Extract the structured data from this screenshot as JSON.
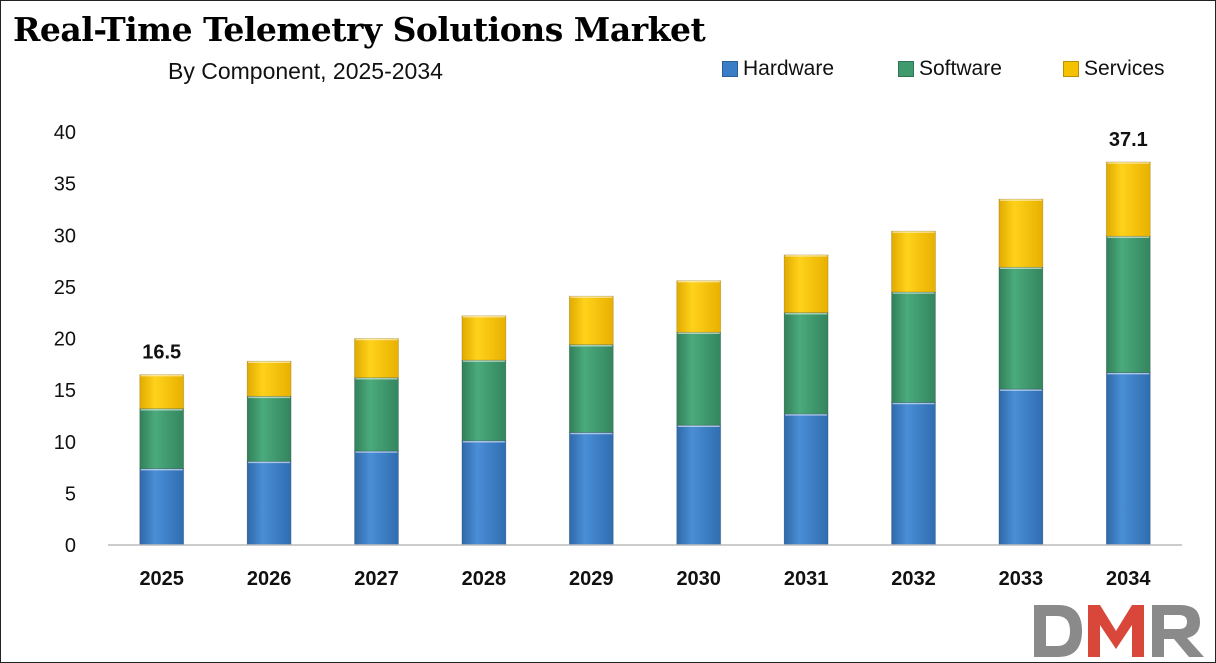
{
  "title": "Real-Time Telemetry Solutions Market",
  "subtitle": "By Component, 2025-2034",
  "logo_text": "DMR",
  "colors": {
    "hardware": "#3a7ec8",
    "software": "#3f9a6e",
    "services": "#f6c200",
    "logo_grey": "#8a8a8a",
    "logo_red": "#d9463a"
  },
  "chart_data": {
    "type": "bar",
    "stacked": true,
    "categories": [
      "2025",
      "2026",
      "2027",
      "2028",
      "2029",
      "2030",
      "2031",
      "2032",
      "2033",
      "2034"
    ],
    "series": [
      {
        "name": "Hardware",
        "color": "#3a7ec8",
        "values": [
          7.4,
          8.1,
          9.1,
          10.1,
          10.9,
          11.6,
          12.7,
          13.8,
          15.1,
          16.7
        ]
      },
      {
        "name": "Software",
        "color": "#3f9a6e",
        "values": [
          5.8,
          6.3,
          7.1,
          7.8,
          8.5,
          9.0,
          9.8,
          10.7,
          11.8,
          13.2
        ]
      },
      {
        "name": "Services",
        "color": "#f6c200",
        "values": [
          3.3,
          3.4,
          3.8,
          4.3,
          4.7,
          5.0,
          5.6,
          5.9,
          6.6,
          7.2
        ]
      }
    ],
    "yticks": [
      "0",
      "5",
      "10",
      "15",
      "20",
      "25",
      "30",
      "35",
      "40"
    ],
    "ylim": [
      0,
      40
    ],
    "grid": false,
    "legend_position": "top-right",
    "total_labels": [
      {
        "category": "2025",
        "text": "16.5"
      },
      {
        "category": "2034",
        "text": "37.1"
      }
    ],
    "xlabel": "",
    "ylabel": ""
  }
}
